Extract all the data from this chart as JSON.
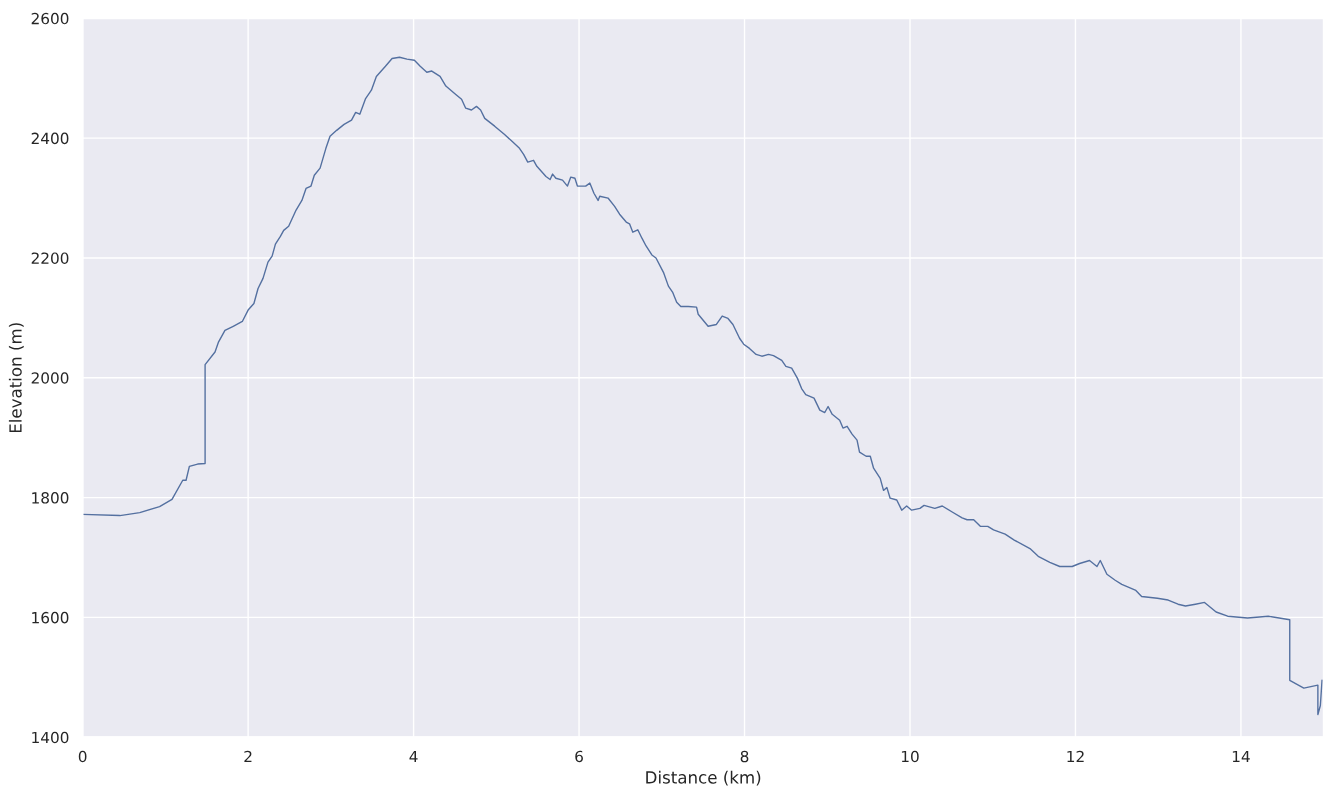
{
  "chart_data": {
    "type": "line",
    "xlabel": "Distance (km)",
    "ylabel": "Elevation (m)",
    "xlim": [
      0,
      15
    ],
    "ylim": [
      1400,
      2600
    ],
    "xticks": [
      0,
      2,
      4,
      6,
      8,
      10,
      12,
      14
    ],
    "yticks": [
      1400,
      1600,
      1800,
      2000,
      2200,
      2400,
      2600
    ],
    "grid": true,
    "series": [
      {
        "color": "#5470a0",
        "x": [
          0,
          0.45,
          0.69,
          0.93,
          1.08,
          1.21,
          1.25,
          1.29,
          1.39,
          1.48,
          1.48,
          1.6,
          1.64,
          1.72,
          1.82,
          1.93,
          2.0,
          2.07,
          2.12,
          2.18,
          2.24,
          2.29,
          2.33,
          2.39,
          2.43,
          2.49,
          2.58,
          2.65,
          2.7,
          2.76,
          2.8,
          2.87,
          2.94,
          2.99,
          3.07,
          3.16,
          3.25,
          3.3,
          3.35,
          3.42,
          3.49,
          3.55,
          3.66,
          3.74,
          3.83,
          3.92,
          4.01,
          4.08,
          4.16,
          4.22,
          4.32,
          4.39,
          4.51,
          4.58,
          4.63,
          4.7,
          4.76,
          4.81,
          4.86,
          4.98,
          5.1,
          5.18,
          5.28,
          5.33,
          5.38,
          5.45,
          5.49,
          5.6,
          5.65,
          5.68,
          5.72,
          5.8,
          5.86,
          5.9,
          5.95,
          5.98,
          6.08,
          6.13,
          6.18,
          6.23,
          6.25,
          6.35,
          6.43,
          6.49,
          6.57,
          6.61,
          6.65,
          6.71,
          6.76,
          6.81,
          6.88,
          6.93,
          7.02,
          7.08,
          7.13,
          7.18,
          7.23,
          7.32,
          7.42,
          7.44,
          7.56,
          7.66,
          7.73,
          7.8,
          7.86,
          7.94,
          7.99,
          8.06,
          8.14,
          8.21,
          8.29,
          8.35,
          8.45,
          8.5,
          8.57,
          8.64,
          8.69,
          8.74,
          8.84,
          8.91,
          8.97,
          9.01,
          9.06,
          9.15,
          9.19,
          9.24,
          9.3,
          9.36,
          9.39,
          9.47,
          9.52,
          9.56,
          9.64,
          9.68,
          9.72,
          9.76,
          9.84,
          9.9,
          9.96,
          10.02,
          10.12,
          10.17,
          10.3,
          10.39,
          10.51,
          10.63,
          10.69,
          10.77,
          10.85,
          10.94,
          11.01,
          11.15,
          11.26,
          11.45,
          11.55,
          11.69,
          11.81,
          11.88,
          11.96,
          12.05,
          12.17,
          12.26,
          12.3,
          12.38,
          12.48,
          12.56,
          12.73,
          12.8,
          12.99,
          13.12,
          13.24,
          13.33,
          13.45,
          13.56,
          13.7,
          13.84,
          14.08,
          14.33,
          14.59,
          14.59,
          14.76,
          14.93,
          14.93,
          14.96,
          14.98
        ],
        "values": [
          1772,
          1770,
          1775,
          1785,
          1797,
          1829,
          1829,
          1852,
          1856,
          1857,
          2022,
          2043,
          2059,
          2079,
          2086,
          2094,
          2113,
          2124,
          2149,
          2166,
          2193,
          2203,
          2223,
          2236,
          2246,
          2253,
          2280,
          2296,
          2316,
          2320,
          2338,
          2350,
          2383,
          2403,
          2413,
          2423,
          2430,
          2443,
          2440,
          2466,
          2480,
          2503,
          2520,
          2533,
          2535,
          2532,
          2530,
          2520,
          2510,
          2512,
          2503,
          2487,
          2473,
          2465,
          2450,
          2447,
          2453,
          2447,
          2433,
          2420,
          2406,
          2396,
          2383,
          2373,
          2360,
          2363,
          2353,
          2336,
          2331,
          2340,
          2333,
          2330,
          2320,
          2335,
          2333,
          2320,
          2320,
          2325,
          2308,
          2296,
          2303,
          2300,
          2286,
          2273,
          2260,
          2257,
          2243,
          2247,
          2233,
          2220,
          2205,
          2200,
          2176,
          2153,
          2143,
          2126,
          2119,
          2119,
          2118,
          2106,
          2086,
          2089,
          2103,
          2099,
          2089,
          2066,
          2056,
          2049,
          2039,
          2036,
          2039,
          2037,
          2029,
          2019,
          2016,
          1999,
          1982,
          1972,
          1966,
          1946,
          1942,
          1952,
          1939,
          1929,
          1916,
          1919,
          1906,
          1896,
          1876,
          1869,
          1869,
          1849,
          1832,
          1812,
          1817,
          1799,
          1796,
          1779,
          1786,
          1779,
          1782,
          1787,
          1782,
          1786,
          1776,
          1766,
          1763,
          1763,
          1752,
          1752,
          1746,
          1739,
          1729,
          1715,
          1702,
          1692,
          1685,
          1685,
          1685,
          1690,
          1695,
          1685,
          1695,
          1672,
          1662,
          1655,
          1645,
          1635,
          1632,
          1629,
          1622,
          1619,
          1622,
          1625,
          1609,
          1602,
          1599,
          1602,
          1596,
          1495,
          1482,
          1487,
          1438,
          1453,
          1495
        ]
      }
    ]
  }
}
